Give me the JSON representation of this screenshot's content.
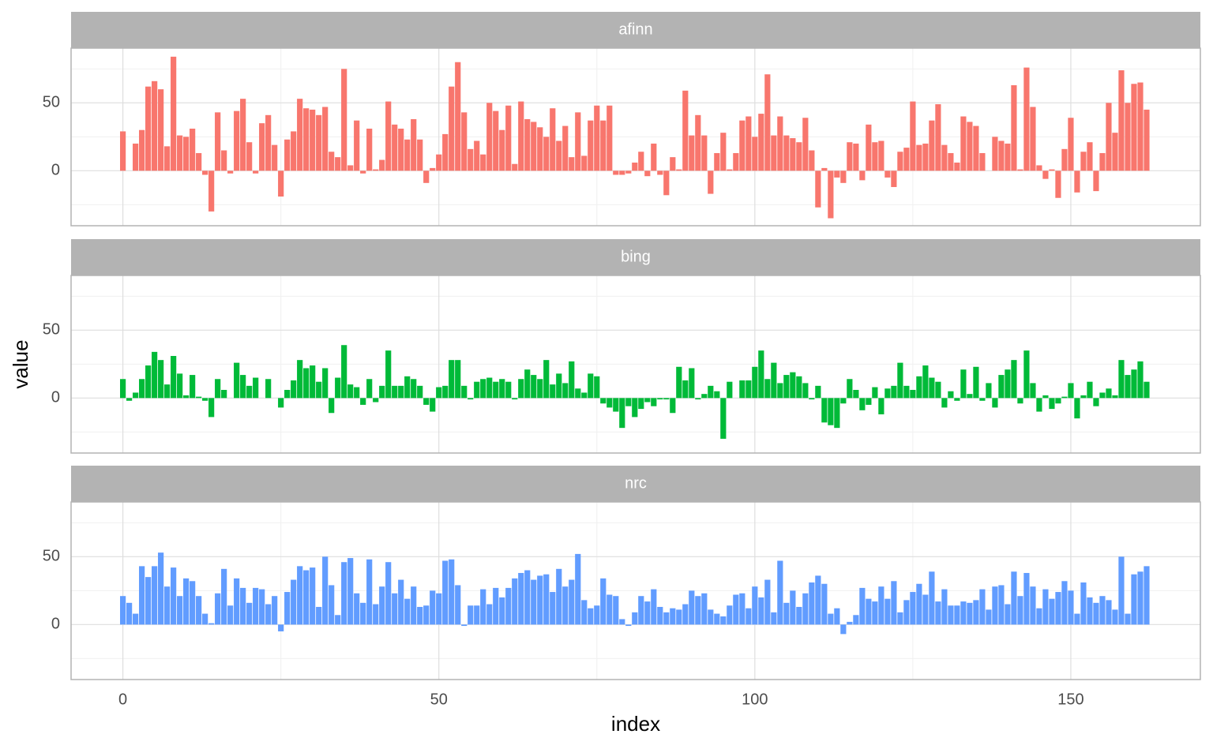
{
  "chart_data": [
    {
      "type": "bar",
      "title": "afinn",
      "color": "#F8766D",
      "x": [
        0,
        1,
        2,
        3,
        4,
        5,
        6,
        7,
        8,
        9,
        10,
        11,
        12,
        13,
        14,
        15,
        16,
        17,
        18,
        19,
        20,
        21,
        22,
        23,
        24,
        25,
        26,
        27,
        28,
        29,
        30,
        31,
        32,
        33,
        34,
        35,
        36,
        37,
        38,
        39,
        40,
        41,
        42,
        43,
        44,
        45,
        46,
        47,
        48,
        49,
        50,
        51,
        52,
        53,
        54,
        55,
        56,
        57,
        58,
        59,
        60,
        61,
        62,
        63,
        64,
        65,
        66,
        67,
        68,
        69,
        70,
        71,
        72,
        73,
        74,
        75,
        76,
        77,
        78,
        79,
        80,
        81,
        82,
        83,
        84,
        85,
        86,
        87,
        88,
        89,
        90,
        91,
        92,
        93,
        94,
        95,
        96,
        97,
        98,
        99,
        100,
        101,
        102,
        103,
        104,
        105,
        106,
        107,
        108,
        109,
        110,
        111,
        112,
        113,
        114,
        115,
        116,
        117,
        118,
        119,
        120,
        121,
        122,
        123,
        124,
        125,
        126,
        127,
        128,
        129,
        130,
        131,
        132,
        133,
        134,
        135,
        136,
        137,
        138,
        139,
        140,
        141,
        142,
        143,
        144,
        145,
        146,
        147,
        148,
        149,
        150,
        151,
        152,
        153,
        154,
        155,
        156,
        157,
        158,
        159,
        160,
        161,
        162
      ],
      "values": [
        29,
        0,
        20,
        30,
        62,
        66,
        60,
        18,
        84,
        26,
        25,
        31,
        13,
        -3,
        -30,
        43,
        15,
        -2,
        44,
        53,
        21,
        -2,
        35,
        41,
        19,
        -19,
        23,
        29,
        53,
        46,
        45,
        41,
        47,
        14,
        10,
        75,
        4,
        37,
        -2,
        31,
        1,
        8,
        51,
        34,
        31,
        23,
        38,
        23,
        -9,
        2,
        12,
        27,
        62,
        80,
        43,
        16,
        22,
        12,
        50,
        44,
        30,
        48,
        5,
        51,
        38,
        36,
        32,
        25,
        46,
        22,
        33,
        10,
        43,
        11,
        37,
        48,
        37,
        48,
        -3,
        -3,
        -2,
        6,
        14,
        -4,
        20,
        -3,
        -18,
        10,
        1,
        59,
        26,
        41,
        26,
        -17,
        13,
        28,
        1,
        13,
        37,
        40,
        25,
        42,
        71,
        26,
        40,
        26,
        24,
        21,
        39,
        15,
        -27,
        2,
        -35,
        -5,
        -9,
        21,
        20,
        -7,
        34,
        21,
        22,
        -5,
        -12,
        14,
        17,
        51,
        19,
        20,
        37,
        49,
        19,
        13,
        6,
        40,
        36,
        33,
        13,
        0,
        25,
        22,
        20,
        63,
        1,
        76,
        47,
        4,
        -6,
        1,
        -20,
        16,
        39,
        -16,
        14,
        21,
        -15,
        13,
        50,
        28,
        74,
        50,
        64,
        65,
        45
      ],
      "xlim": [
        -8.2,
        170.5
      ],
      "ylim": [
        -40.5,
        90.3
      ],
      "xticks": [
        0,
        50,
        100,
        150
      ],
      "yticks": [
        0,
        50
      ],
      "xticks_minor": [
        25,
        75,
        125
      ],
      "yticks_minor": [
        -25,
        25,
        75
      ],
      "grid": true
    },
    {
      "type": "bar",
      "title": "bing",
      "color": "#00BA38",
      "y_label": "value",
      "x": [
        0,
        1,
        2,
        3,
        4,
        5,
        6,
        7,
        8,
        9,
        10,
        11,
        12,
        13,
        14,
        15,
        16,
        17,
        18,
        19,
        20,
        21,
        22,
        23,
        24,
        25,
        26,
        27,
        28,
        29,
        30,
        31,
        32,
        33,
        34,
        35,
        36,
        37,
        38,
        39,
        40,
        41,
        42,
        43,
        44,
        45,
        46,
        47,
        48,
        49,
        50,
        51,
        52,
        53,
        54,
        55,
        56,
        57,
        58,
        59,
        60,
        61,
        62,
        63,
        64,
        65,
        66,
        67,
        68,
        69,
        70,
        71,
        72,
        73,
        74,
        75,
        76,
        77,
        78,
        79,
        80,
        81,
        82,
        83,
        84,
        85,
        86,
        87,
        88,
        89,
        90,
        91,
        92,
        93,
        94,
        95,
        96,
        97,
        98,
        99,
        100,
        101,
        102,
        103,
        104,
        105,
        106,
        107,
        108,
        109,
        110,
        111,
        112,
        113,
        114,
        115,
        116,
        117,
        118,
        119,
        120,
        121,
        122,
        123,
        124,
        125,
        126,
        127,
        128,
        129,
        130,
        131,
        132,
        133,
        134,
        135,
        136,
        137,
        138,
        139,
        140,
        141,
        142,
        143,
        144,
        145,
        146,
        147,
        148,
        149,
        150,
        151,
        152,
        153,
        154,
        155,
        156,
        157,
        158,
        159,
        160,
        161,
        162
      ],
      "values": [
        14,
        -2,
        4,
        14,
        24,
        34,
        28,
        10,
        31,
        18,
        2,
        17,
        1,
        -2,
        -14,
        14,
        6,
        0,
        26,
        17,
        9,
        15,
        0,
        14,
        0,
        -7,
        6,
        13,
        28,
        22,
        24,
        12,
        22,
        -11,
        15,
        39,
        10,
        8,
        -5,
        14,
        -3,
        9,
        35,
        9,
        9,
        16,
        14,
        9,
        -5,
        -10,
        8,
        9,
        28,
        28,
        9,
        -1,
        12,
        14,
        15,
        12,
        14,
        12,
        -1,
        14,
        21,
        17,
        14,
        28,
        10,
        18,
        11,
        27,
        7,
        4,
        18,
        16,
        -4,
        -7,
        -10,
        -22,
        -6,
        -14,
        -8,
        -3,
        -6,
        -1,
        -1,
        -11,
        23,
        13,
        22,
        -1,
        3,
        9,
        5,
        -30,
        12,
        0,
        13,
        13,
        23,
        35,
        14,
        26,
        11,
        17,
        19,
        16,
        11,
        -1,
        9,
        -18,
        -20,
        -22,
        -4,
        14,
        6,
        -9,
        -5,
        8,
        -12,
        7,
        9,
        26,
        9,
        6,
        16,
        24,
        15,
        12,
        -7,
        5,
        -2,
        21,
        3,
        23,
        -2,
        11,
        -7,
        17,
        21,
        28,
        -4,
        35,
        11,
        -10,
        2,
        -8,
        -4,
        1,
        11,
        -15,
        2,
        12,
        -6,
        4,
        7,
        2,
        28,
        17,
        21,
        27,
        12
      ],
      "xlim": [
        -8.2,
        170.5
      ],
      "ylim": [
        -40.5,
        90.3
      ],
      "xticks": [
        0,
        50,
        100,
        150
      ],
      "yticks": [
        0,
        50
      ],
      "xticks_minor": [
        25,
        75,
        125
      ],
      "yticks_minor": [
        -25,
        25,
        75
      ],
      "grid": true
    },
    {
      "type": "bar",
      "title": "nrc",
      "color": "#619CFF",
      "x_label": "index",
      "x": [
        0,
        1,
        2,
        3,
        4,
        5,
        6,
        7,
        8,
        9,
        10,
        11,
        12,
        13,
        14,
        15,
        16,
        17,
        18,
        19,
        20,
        21,
        22,
        23,
        24,
        25,
        26,
        27,
        28,
        29,
        30,
        31,
        32,
        33,
        34,
        35,
        36,
        37,
        38,
        39,
        40,
        41,
        42,
        43,
        44,
        45,
        46,
        47,
        48,
        49,
        50,
        51,
        52,
        53,
        54,
        55,
        56,
        57,
        58,
        59,
        60,
        61,
        62,
        63,
        64,
        65,
        66,
        67,
        68,
        69,
        70,
        71,
        72,
        73,
        74,
        75,
        76,
        77,
        78,
        79,
        80,
        81,
        82,
        83,
        84,
        85,
        86,
        87,
        88,
        89,
        90,
        91,
        92,
        93,
        94,
        95,
        96,
        97,
        98,
        99,
        100,
        101,
        102,
        103,
        104,
        105,
        106,
        107,
        108,
        109,
        110,
        111,
        112,
        113,
        114,
        115,
        116,
        117,
        118,
        119,
        120,
        121,
        122,
        123,
        124,
        125,
        126,
        127,
        128,
        129,
        130,
        131,
        132,
        133,
        134,
        135,
        136,
        137,
        138,
        139,
        140,
        141,
        142,
        143,
        144,
        145,
        146,
        147,
        148,
        149,
        150,
        151,
        152,
        153,
        154,
        155,
        156,
        157,
        158,
        159,
        160,
        161,
        162
      ],
      "values": [
        21,
        16,
        8,
        43,
        35,
        43,
        53,
        28,
        42,
        21,
        34,
        32,
        21,
        8,
        1,
        23,
        41,
        14,
        34,
        27,
        16,
        27,
        26,
        15,
        21,
        -5,
        24,
        33,
        43,
        40,
        42,
        13,
        50,
        29,
        7,
        46,
        49,
        23,
        16,
        48,
        15,
        28,
        46,
        23,
        33,
        19,
        28,
        13,
        14,
        25,
        23,
        47,
        48,
        29,
        -1,
        14,
        14,
        26,
        15,
        27,
        20,
        27,
        34,
        38,
        40,
        33,
        36,
        37,
        24,
        41,
        28,
        33,
        52,
        18,
        12,
        14,
        34,
        22,
        21,
        4,
        -1,
        9,
        21,
        17,
        26,
        13,
        9,
        12,
        11,
        15,
        25,
        21,
        23,
        11,
        8,
        6,
        14,
        22,
        23,
        12,
        28,
        20,
        33,
        9,
        47,
        16,
        25,
        13,
        23,
        31,
        36,
        30,
        8,
        12,
        -7,
        2,
        7,
        27,
        19,
        17,
        28,
        19,
        32,
        9,
        18,
        24,
        30,
        22,
        39,
        17,
        26,
        14,
        14,
        17,
        16,
        18,
        26,
        11,
        28,
        29,
        15,
        39,
        21,
        38,
        28,
        12,
        26,
        19,
        24,
        32,
        25,
        8,
        31,
        20,
        16,
        21,
        18,
        11,
        50,
        8,
        37,
        39,
        43
      ],
      "xlim": [
        -8.2,
        170.5
      ],
      "ylim": [
        -40.5,
        90.3
      ],
      "xticks": [
        0,
        50,
        100,
        150
      ],
      "yticks": [
        0,
        50
      ],
      "xticks_minor": [
        25,
        75,
        125
      ],
      "yticks_minor": [
        -25,
        25,
        75
      ],
      "grid": true
    }
  ]
}
